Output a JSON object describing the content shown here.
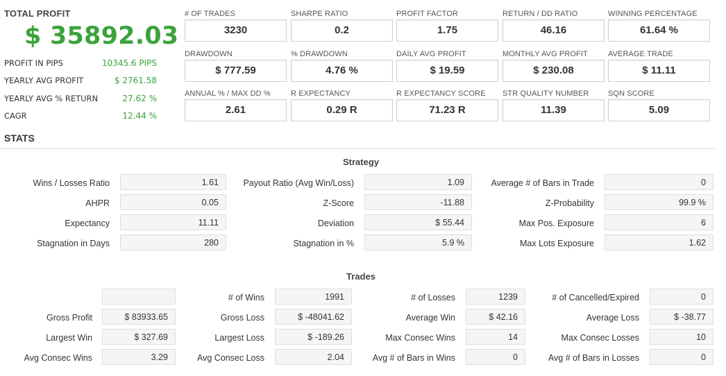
{
  "summary": {
    "total_label": "TOTAL PROFIT",
    "total_value": "$ 35892.03",
    "rows": [
      {
        "label": "PROFIT IN PIPS",
        "value": "10345.6 PIPS"
      },
      {
        "label": "YEARLY AVG PROFIT",
        "value": "$ 2761.58"
      },
      {
        "label": "YEARLY AVG % RETURN",
        "value": "27.62 %"
      },
      {
        "label": "CAGR",
        "value": "12.44 %"
      }
    ]
  },
  "metrics": [
    {
      "label": "# OF TRADES",
      "value": "3230"
    },
    {
      "label": "SHARPE RATIO",
      "value": "0.2"
    },
    {
      "label": "PROFIT FACTOR",
      "value": "1.75"
    },
    {
      "label": "RETURN / DD RATIO",
      "value": "46.16"
    },
    {
      "label": "WINNING PERCENTAGE",
      "value": "61.64 %"
    },
    {
      "label": "DRAWDOWN",
      "value": "$ 777.59"
    },
    {
      "label": "% DRAWDOWN",
      "value": "4.76 %"
    },
    {
      "label": "DAILY AVG PROFIT",
      "value": "$ 19.59"
    },
    {
      "label": "MONTHLY AVG PROFIT",
      "value": "$ 230.08"
    },
    {
      "label": "AVERAGE TRADE",
      "value": "$ 11.11"
    },
    {
      "label": "ANNUAL % / MAX DD %",
      "value": "2.61"
    },
    {
      "label": "R EXPECTANCY",
      "value": "0.29 R"
    },
    {
      "label": "R EXPECTANCY SCORE",
      "value": "71.23 R"
    },
    {
      "label": "STR QUALITY NUMBER",
      "value": "11.39"
    },
    {
      "label": "SQN SCORE",
      "value": "5.09"
    }
  ],
  "stats_title": "STATS",
  "strategy": {
    "title": "Strategy",
    "rows": [
      [
        {
          "label": "Wins / Losses Ratio",
          "value": "1.61"
        },
        {
          "label": "Payout Ratio (Avg Win/Loss)",
          "value": "1.09"
        },
        {
          "label": "Average # of Bars in Trade",
          "value": "0"
        }
      ],
      [
        {
          "label": "AHPR",
          "value": "0.05"
        },
        {
          "label": "Z-Score",
          "value": "-11.88"
        },
        {
          "label": "Z-Probability",
          "value": "99.9 %"
        }
      ],
      [
        {
          "label": "Expectancy",
          "value": "11.11"
        },
        {
          "label": "Deviation",
          "value": "$ 55.44"
        },
        {
          "label": "Max Pos. Exposure",
          "value": "6"
        }
      ],
      [
        {
          "label": "Stagnation in Days",
          "value": "280"
        },
        {
          "label": "Stagnation in %",
          "value": "5.9 %"
        },
        {
          "label": "Max Lots Exposure",
          "value": "1.62"
        }
      ]
    ]
  },
  "trades": {
    "title": "Trades",
    "rows": [
      [
        {
          "label": "",
          "value": ""
        },
        {
          "label": "# of Wins",
          "value": "1991"
        },
        {
          "label": "# of Losses",
          "value": "1239"
        },
        {
          "label": "# of Cancelled/Expired",
          "value": "0"
        }
      ],
      [
        {
          "label": "Gross Profit",
          "value": "$ 83933.65"
        },
        {
          "label": "Gross Loss",
          "value": "$ -48041.62"
        },
        {
          "label": "Average Win",
          "value": "$ 42.16"
        },
        {
          "label": "Average Loss",
          "value": "$ -38.77"
        }
      ],
      [
        {
          "label": "Largest Win",
          "value": "$ 327.69"
        },
        {
          "label": "Largest Loss",
          "value": "$ -189.26"
        },
        {
          "label": "Max Consec Wins",
          "value": "14"
        },
        {
          "label": "Max Consec Losses",
          "value": "10"
        }
      ],
      [
        {
          "label": "Avg Consec Wins",
          "value": "3.29"
        },
        {
          "label": "Avg Consec Loss",
          "value": "2.04"
        },
        {
          "label": "Avg # of Bars in Wins",
          "value": "0"
        },
        {
          "label": "Avg # of Bars in Losses",
          "value": "0"
        }
      ]
    ]
  }
}
